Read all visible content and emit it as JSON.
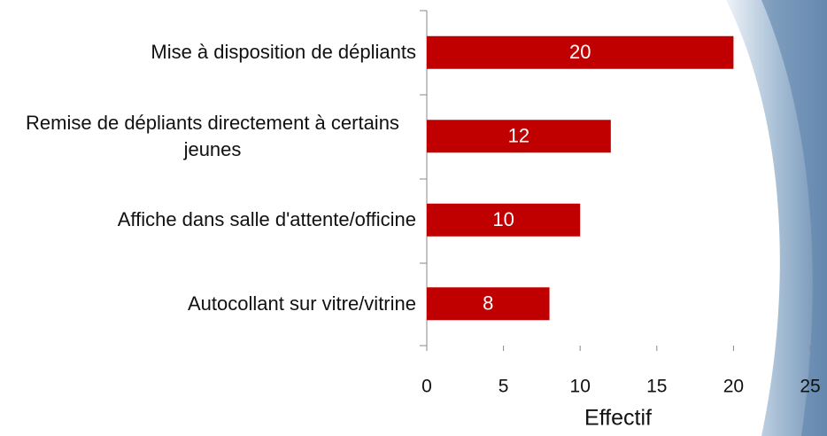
{
  "chart_data": {
    "type": "barh",
    "x_label": "Effectif",
    "categories": [
      "Mise à disposition de dépliants",
      "Remise de dépliants directement à certains jeunes",
      "Affiche dans salle d'attente/officine",
      "Autocollant sur vitre/vitrine"
    ],
    "values": [
      20,
      12,
      10,
      8
    ],
    "color": "#c00000",
    "xlim": [
      0,
      25
    ],
    "xticks": [
      0,
      5,
      10,
      15,
      20,
      25
    ]
  }
}
